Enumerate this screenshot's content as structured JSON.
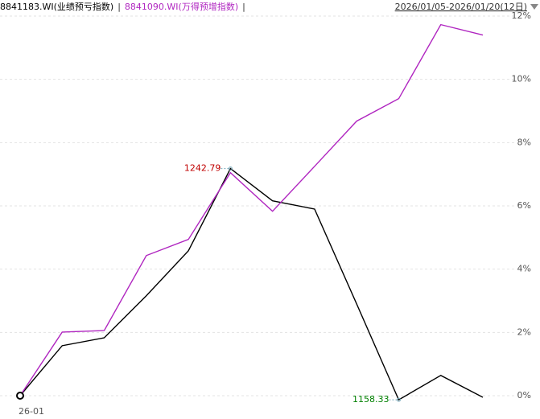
{
  "chart_data": {
    "type": "line",
    "header": {
      "range": "2026/01/05-2026/01/20(12日)",
      "separator": "|"
    },
    "categories": [
      "26-01",
      null,
      null,
      null,
      null,
      null,
      null,
      null,
      null,
      null,
      null,
      null
    ],
    "series": [
      {
        "name": "8841183.WI(业绩预亏指数)",
        "color": "#000000",
        "values": [
          0,
          1.58,
          1.83,
          3.16,
          4.58,
          7.18,
          6.16,
          5.9,
          2.9,
          -0.13,
          0.64,
          -0.05
        ]
      },
      {
        "name": "8841090.WI(万得预增指数)",
        "color": "#b026c0",
        "values": [
          0,
          2.01,
          2.06,
          4.43,
          4.94,
          7.05,
          5.83,
          7.25,
          8.68,
          9.39,
          11.73,
          11.4
        ]
      }
    ],
    "annotations": [
      {
        "text": "1242.79",
        "color": "#c00000"
      },
      {
        "text": "1158.33",
        "color": "#008000"
      }
    ],
    "ylim": [
      -0.5,
      12.2
    ],
    "yticks": [
      {
        "value": 0,
        "label": "0%"
      },
      {
        "value": 2,
        "label": "2%"
      },
      {
        "value": 4,
        "label": "4%"
      },
      {
        "value": 6,
        "label": "6%"
      },
      {
        "value": 8,
        "label": "8%"
      },
      {
        "value": 10,
        "label": "10%"
      },
      {
        "value": 12,
        "label": "12%"
      }
    ],
    "grid": true
  }
}
